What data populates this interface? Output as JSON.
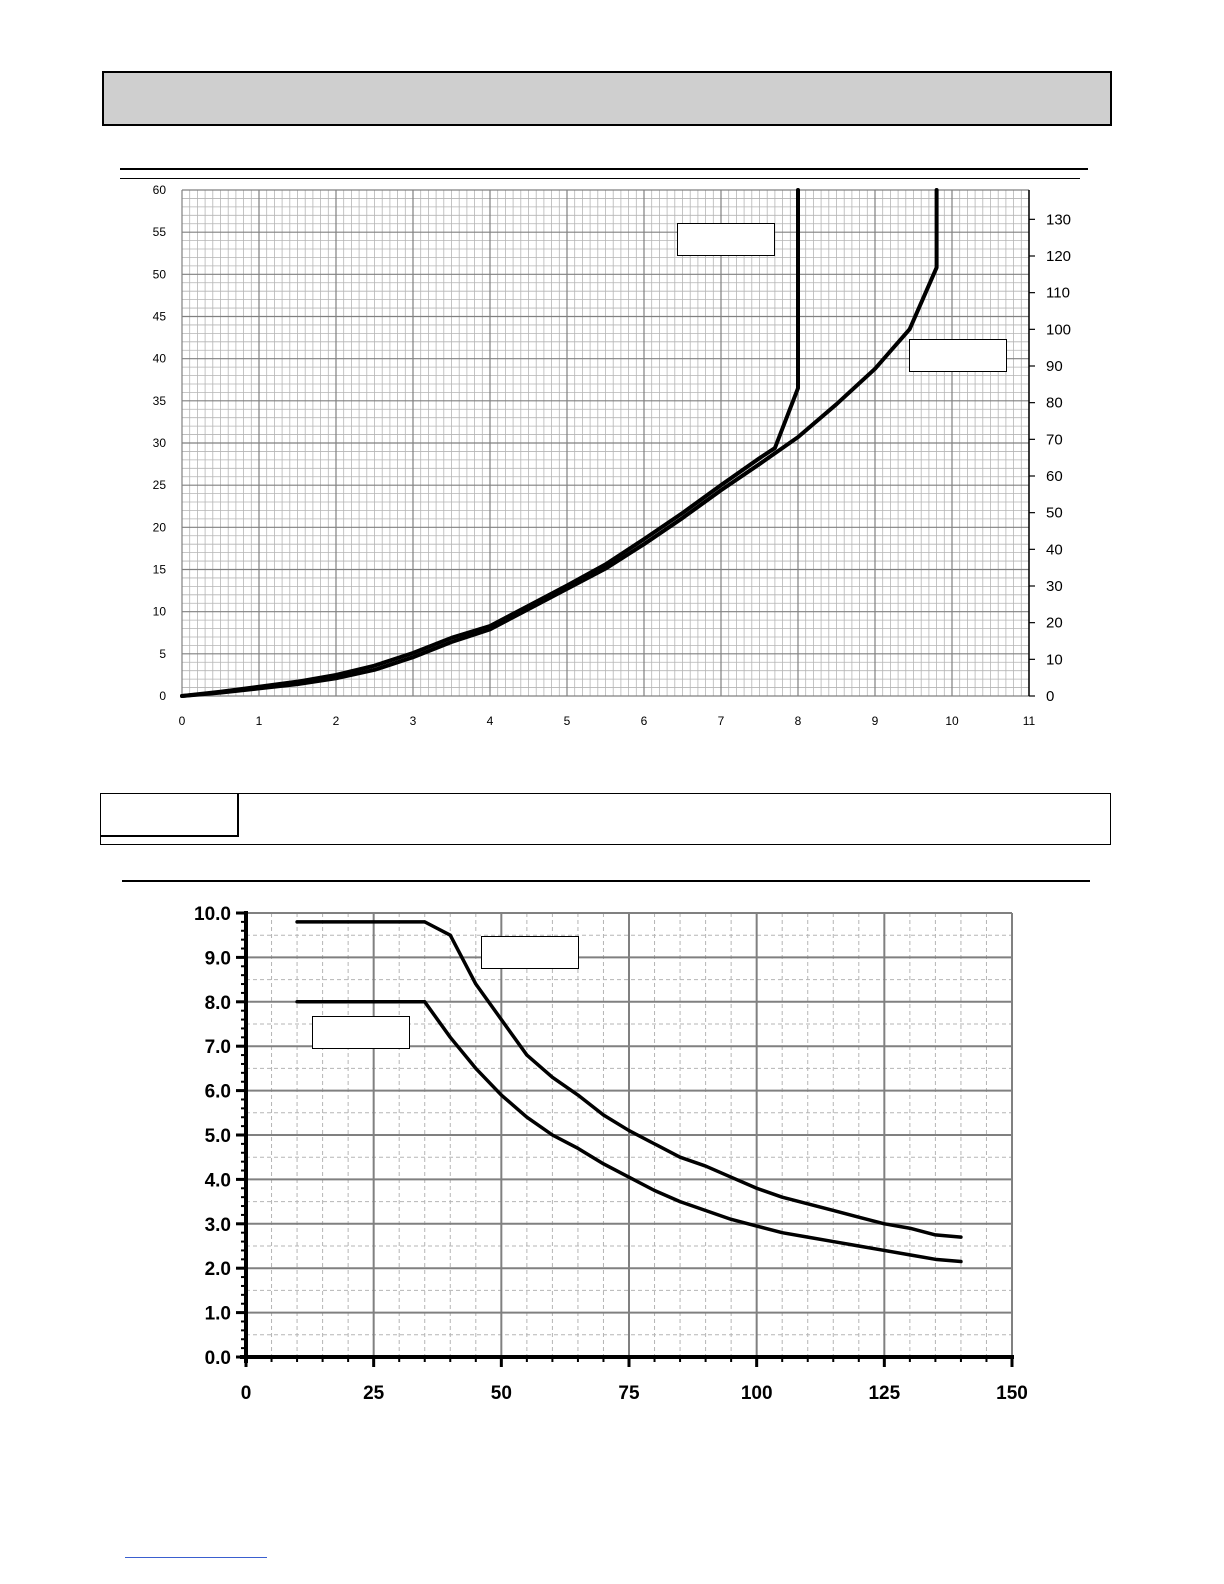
{
  "colors": {
    "line": "#000000",
    "grid_major": "#808080",
    "grid_minor": "#b5b5b5",
    "title_bar": "#cfcfcf"
  },
  "chart_data": [
    {
      "type": "line",
      "x_ticks": [
        "0",
        "1",
        "2",
        "3",
        "4",
        "5",
        "6",
        "7",
        "8",
        "9",
        "10",
        "11"
      ],
      "y_left_ticks": [
        "0",
        "5",
        "10",
        "15",
        "20",
        "25",
        "30",
        "35",
        "40",
        "45",
        "50",
        "55",
        "60"
      ],
      "y_right_ticks": [
        "0",
        "10",
        "20",
        "30",
        "40",
        "50",
        "60",
        "70",
        "80",
        "90",
        "100",
        "110",
        "120",
        "130"
      ],
      "xlim": [
        0,
        11
      ],
      "ylim_left": [
        0,
        60
      ],
      "ylim_right": [
        0,
        138
      ],
      "grid": true,
      "series": [
        {
          "axis": "left",
          "x": [
            0,
            0.5,
            1,
            1.5,
            2,
            2.5,
            3,
            3.5,
            4,
            4.5,
            5,
            5.5,
            6,
            6.5,
            7,
            7.5,
            7.7,
            8,
            8,
            8
          ],
          "y": [
            0,
            0.5,
            1.1,
            1.7,
            2.5,
            3.6,
            5.1,
            6.9,
            8.3,
            10.7,
            13.1,
            15.6,
            18.6,
            21.7,
            25.0,
            28.2,
            29.4,
            36.5,
            49,
            60
          ]
        },
        {
          "axis": "left",
          "x": [
            0,
            0.5,
            1,
            1.5,
            2,
            2.5,
            3,
            3.5,
            4,
            4.5,
            5,
            5.5,
            6,
            6.5,
            7,
            7.5,
            8,
            8.5,
            9,
            9.45,
            9.8,
            9.8
          ],
          "y": [
            0,
            0.4,
            0.9,
            1.4,
            2.1,
            3.1,
            4.6,
            6.4,
            7.9,
            10.3,
            12.7,
            15.1,
            18.0,
            21.1,
            24.4,
            27.5,
            30.7,
            34.6,
            38.8,
            43.5,
            50.8,
            60
          ]
        }
      ]
    },
    {
      "type": "line",
      "x_ticks": [
        "0",
        "25",
        "50",
        "75",
        "100",
        "125",
        "150"
      ],
      "y_ticks": [
        "0.0",
        "1.0",
        "2.0",
        "3.0",
        "4.0",
        "5.0",
        "6.0",
        "7.0",
        "8.0",
        "9.0",
        "10.0"
      ],
      "xlim": [
        0,
        150
      ],
      "ylim": [
        0,
        10
      ],
      "grid": true,
      "series": [
        {
          "x": [
            10,
            20,
            30,
            35,
            40,
            45,
            50,
            55,
            60,
            65,
            70,
            75,
            80,
            85,
            90,
            95,
            100,
            105,
            110,
            115,
            120,
            125,
            130,
            135,
            140
          ],
          "y": [
            9.8,
            9.8,
            9.8,
            9.8,
            9.5,
            8.4,
            7.6,
            6.8,
            6.3,
            5.9,
            5.45,
            5.1,
            4.8,
            4.5,
            4.3,
            4.05,
            3.8,
            3.6,
            3.45,
            3.3,
            3.15,
            3.0,
            2.9,
            2.75,
            2.7
          ]
        },
        {
          "x": [
            10,
            20,
            30,
            35,
            40,
            45,
            50,
            55,
            60,
            65,
            70,
            75,
            80,
            85,
            90,
            95,
            100,
            105,
            110,
            115,
            120,
            125,
            130,
            135,
            140
          ],
          "y": [
            8.0,
            8.0,
            8.0,
            8.0,
            7.2,
            6.5,
            5.9,
            5.4,
            5.0,
            4.7,
            4.35,
            4.05,
            3.75,
            3.5,
            3.3,
            3.1,
            2.95,
            2.8,
            2.7,
            2.6,
            2.5,
            2.4,
            2.3,
            2.2,
            2.15
          ]
        }
      ]
    }
  ]
}
